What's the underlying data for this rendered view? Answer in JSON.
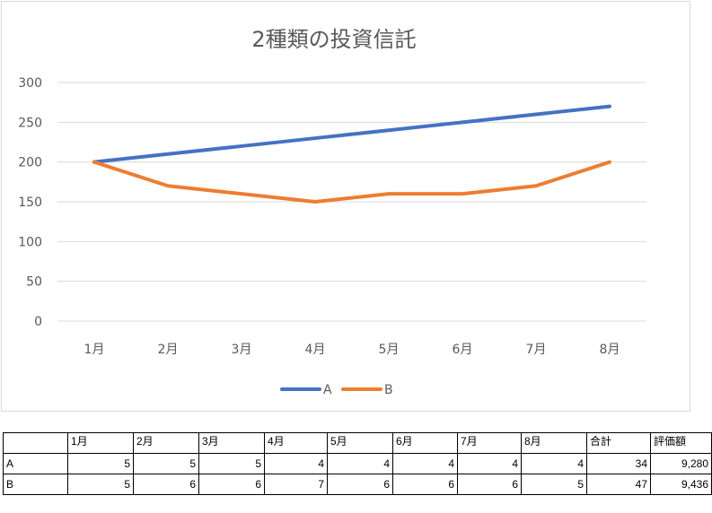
{
  "chart_data": {
    "type": "line",
    "title": "2種類の投資信託",
    "categories": [
      "1月",
      "2月",
      "3月",
      "4月",
      "5月",
      "6月",
      "7月",
      "8月"
    ],
    "series": [
      {
        "name": "A",
        "values": [
          200,
          210,
          220,
          230,
          240,
          250,
          260,
          270
        ],
        "color": "#4472c4"
      },
      {
        "name": "B",
        "values": [
          200,
          170,
          160,
          150,
          160,
          160,
          170,
          200
        ],
        "color": "#ed7d31"
      }
    ],
    "ylim": [
      0,
      300
    ],
    "yticks": [
      0,
      50,
      100,
      150,
      200,
      250,
      300
    ],
    "grid": true,
    "legend": "bottom"
  },
  "table": {
    "header": [
      "",
      "1月",
      "2月",
      "3月",
      "4月",
      "5月",
      "6月",
      "7月",
      "8月",
      "合計",
      "評価額"
    ],
    "rows": [
      [
        "A",
        "5",
        "5",
        "5",
        "4",
        "4",
        "4",
        "4",
        "4",
        "34",
        "9,280"
      ],
      [
        "B",
        "5",
        "6",
        "6",
        "7",
        "6",
        "6",
        "6",
        "5",
        "47",
        "9,436"
      ]
    ]
  }
}
